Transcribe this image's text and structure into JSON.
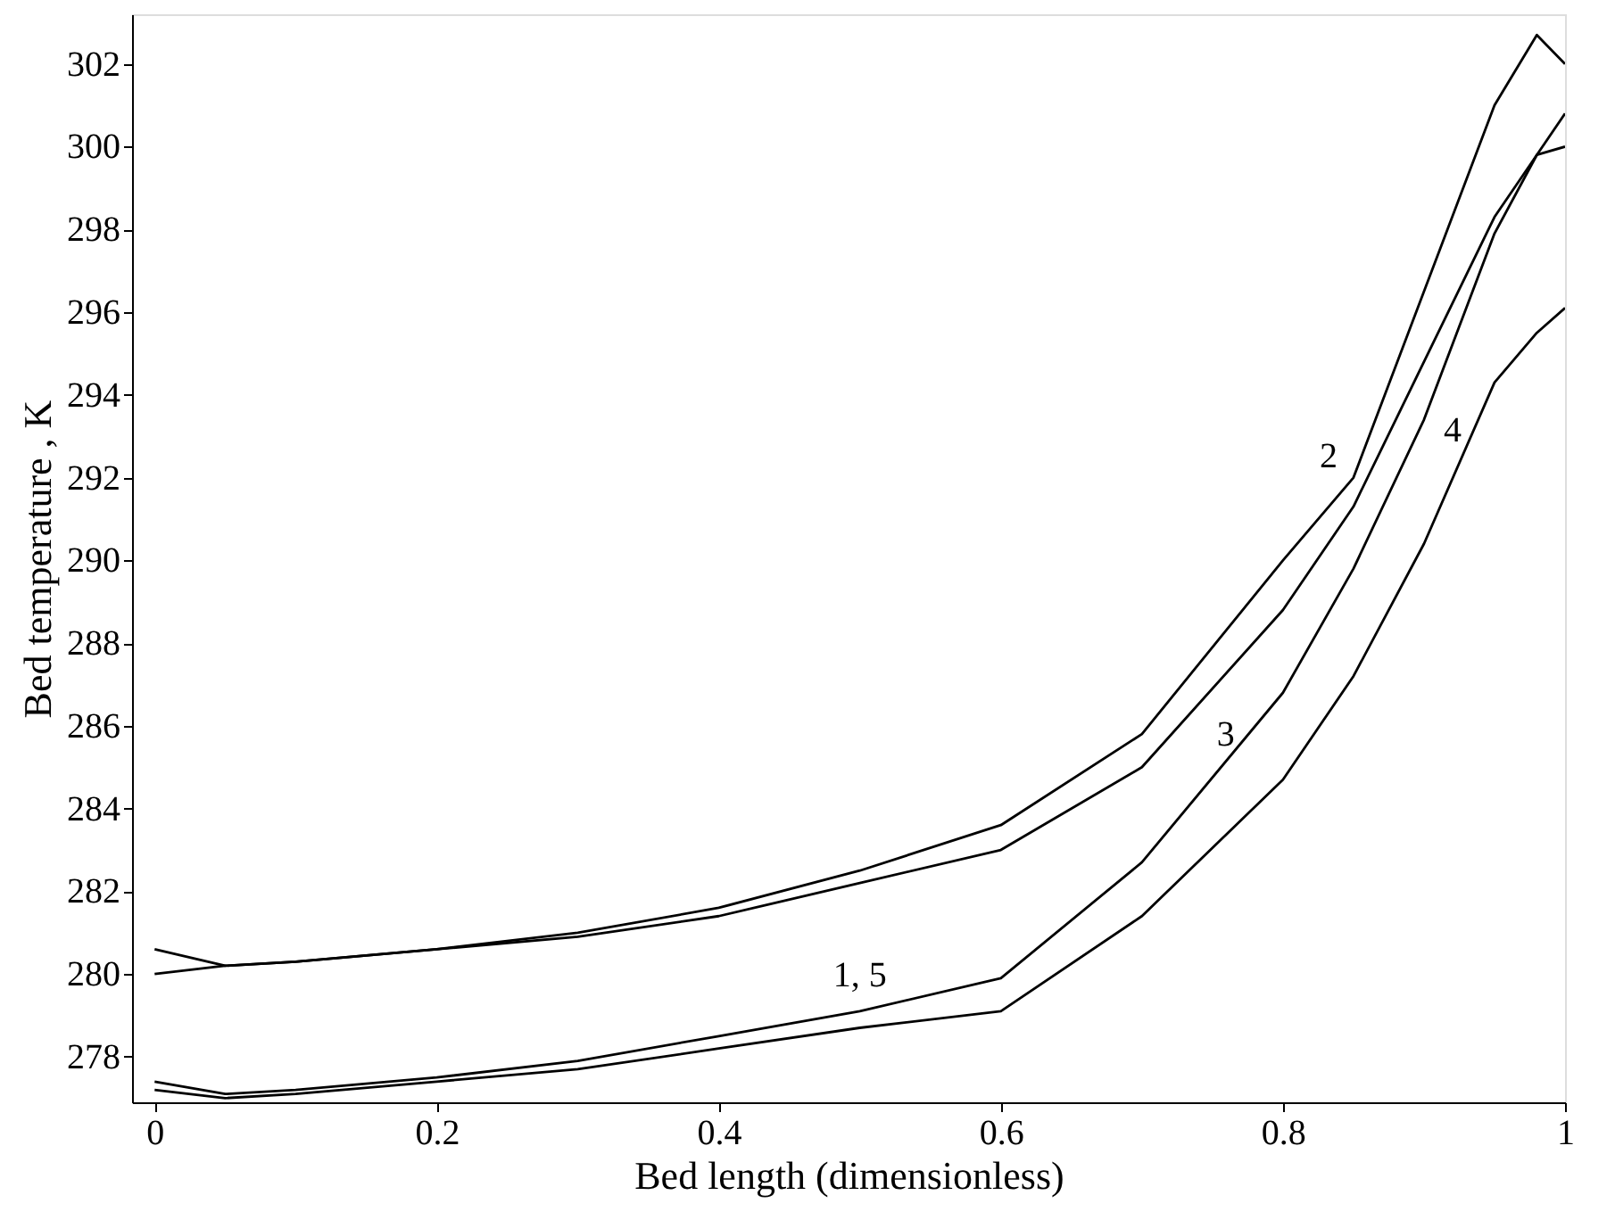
{
  "chart_data": {
    "type": "line",
    "xlabel": "Bed length (dimensionless)",
    "ylabel": "Bed temperature , K",
    "x": [
      0,
      0.05,
      0.1,
      0.2,
      0.3,
      0.4,
      0.5,
      0.6,
      0.7,
      0.8,
      0.85,
      0.9,
      0.95,
      0.98,
      1.0
    ],
    "series": [
      {
        "color": "#000000",
        "values": [
          280.6,
          280.2,
          280.3,
          280.6,
          281.0,
          281.6,
          282.5,
          283.6,
          285.8,
          290.0,
          292.0,
          296.5,
          301.0,
          302.7,
          302.0
        ]
      },
      {
        "color": "#000000",
        "values": [
          280.0,
          280.2,
          280.3,
          280.6,
          280.9,
          281.4,
          282.2,
          283.0,
          285.0,
          288.8,
          291.3,
          294.8,
          298.3,
          299.8,
          300.0
        ]
      },
      {
        "color": "#000000",
        "values": [
          277.4,
          277.1,
          277.2,
          277.5,
          277.9,
          278.5,
          279.1,
          279.9,
          282.7,
          286.8,
          289.8,
          293.4,
          297.9,
          299.8,
          300.8
        ]
      },
      {
        "color": "#000000",
        "values": [
          277.2,
          277.0,
          277.1,
          277.4,
          277.7,
          278.2,
          278.7,
          279.1,
          281.4,
          284.7,
          287.2,
          290.4,
          294.3,
          295.5,
          296.1
        ]
      }
    ],
    "annotations": [
      {
        "text": "2",
        "x": 0.85,
        "y": 292.0
      },
      {
        "text": "3",
        "x": 0.7,
        "y": 285.0
      },
      {
        "text": "4",
        "x": 0.9,
        "y": 293.4
      },
      {
        "text": "1, 5",
        "x": 0.5,
        "y": 279.1
      }
    ],
    "xlim": [
      -0.016,
      1.0
    ],
    "ylim": [
      276.9,
      303.2
    ],
    "xticks": [
      0,
      0.2,
      0.4,
      0.6,
      0.8,
      1
    ],
    "yticks": [
      278,
      280,
      282,
      284,
      286,
      288,
      290,
      292,
      294,
      296,
      298,
      300,
      302
    ],
    "grid": false,
    "legend": false,
    "marker": "none",
    "line_style": "solid"
  }
}
